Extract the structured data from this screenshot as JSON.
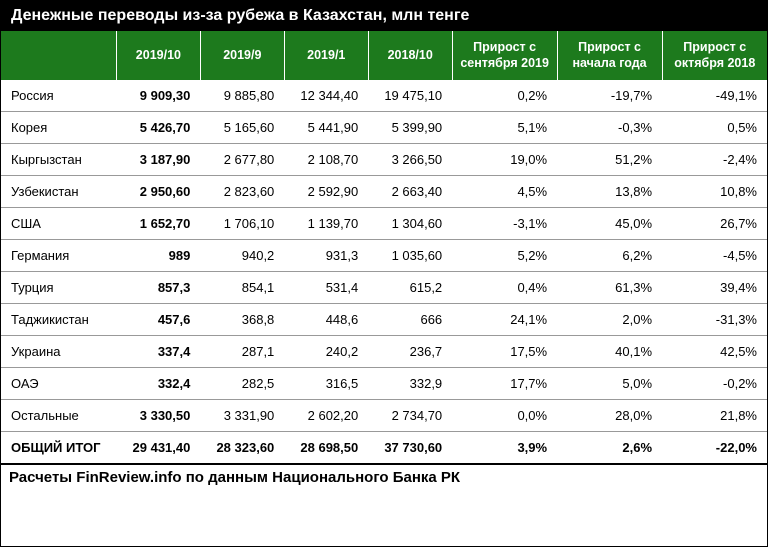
{
  "title": "Денежные переводы из-за рубежа в Казахстан, млн тенге",
  "source": "Расчеты FinReview.info по данным Национального Банка РК",
  "columns": {
    "c0": "",
    "c1": "2019/10",
    "c2": "2019/9",
    "c3": "2019/1",
    "c4": "2018/10",
    "c5": "Прирост с сентября 2019",
    "c6": "Прирост с начала года",
    "c7": "Прирост с октября 2018"
  },
  "rows": [
    {
      "name": "Россия",
      "v1": "9 909,30",
      "v2": "9 885,80",
      "v3": "12 344,40",
      "v4": "19 475,10",
      "g1": "0,2%",
      "g2": "-19,7%",
      "g3": "-49,1%"
    },
    {
      "name": "Корея",
      "v1": "5 426,70",
      "v2": "5 165,60",
      "v3": "5 441,90",
      "v4": "5 399,90",
      "g1": "5,1%",
      "g2": "-0,3%",
      "g3": "0,5%"
    },
    {
      "name": "Кыргызстан",
      "v1": "3 187,90",
      "v2": "2 677,80",
      "v3": "2 108,70",
      "v4": "3 266,50",
      "g1": "19,0%",
      "g2": "51,2%",
      "g3": "-2,4%"
    },
    {
      "name": "Узбекистан",
      "v1": "2 950,60",
      "v2": "2 823,60",
      "v3": "2 592,90",
      "v4": "2 663,40",
      "g1": "4,5%",
      "g2": "13,8%",
      "g3": "10,8%"
    },
    {
      "name": "США",
      "v1": "1 652,70",
      "v2": "1 706,10",
      "v3": "1 139,70",
      "v4": "1 304,60",
      "g1": "-3,1%",
      "g2": "45,0%",
      "g3": "26,7%"
    },
    {
      "name": "Германия",
      "v1": "989",
      "v2": "940,2",
      "v3": "931,3",
      "v4": "1 035,60",
      "g1": "5,2%",
      "g2": "6,2%",
      "g3": "-4,5%"
    },
    {
      "name": "Турция",
      "v1": "857,3",
      "v2": "854,1",
      "v3": "531,4",
      "v4": "615,2",
      "g1": "0,4%",
      "g2": "61,3%",
      "g3": "39,4%"
    },
    {
      "name": "Таджикистан",
      "v1": "457,6",
      "v2": "368,8",
      "v3": "448,6",
      "v4": "666",
      "g1": "24,1%",
      "g2": "2,0%",
      "g3": "-31,3%"
    },
    {
      "name": "Украина",
      "v1": "337,4",
      "v2": "287,1",
      "v3": "240,2",
      "v4": "236,7",
      "g1": "17,5%",
      "g2": "40,1%",
      "g3": "42,5%"
    },
    {
      "name": "ОАЭ",
      "v1": "332,4",
      "v2": "282,5",
      "v3": "316,5",
      "v4": "332,9",
      "g1": "17,7%",
      "g2": "5,0%",
      "g3": "-0,2%"
    },
    {
      "name": "Остальные",
      "v1": "3 330,50",
      "v2": "3 331,90",
      "v3": "2 602,20",
      "v4": "2 734,70",
      "g1": "0,0%",
      "g2": "28,0%",
      "g3": "21,8%"
    },
    {
      "name": "ОБЩИЙ ИТОГ",
      "v1": "29 431,40",
      "v2": "28 323,60",
      "v3": "28 698,50",
      "v4": "37 730,60",
      "g1": "3,9%",
      "g2": "2,6%",
      "g3": "-22,0%",
      "total": true
    }
  ],
  "styling": {
    "header_bg": "#1d7a1d",
    "header_text": "#ffffff",
    "title_bg": "#000000",
    "title_text": "#ffffff",
    "row_border": "#999999",
    "body_text": "#000000",
    "font_family": "Arial",
    "title_fontsize": 16,
    "header_fontsize": 12.5,
    "cell_fontsize": 13,
    "source_fontsize": 15
  }
}
